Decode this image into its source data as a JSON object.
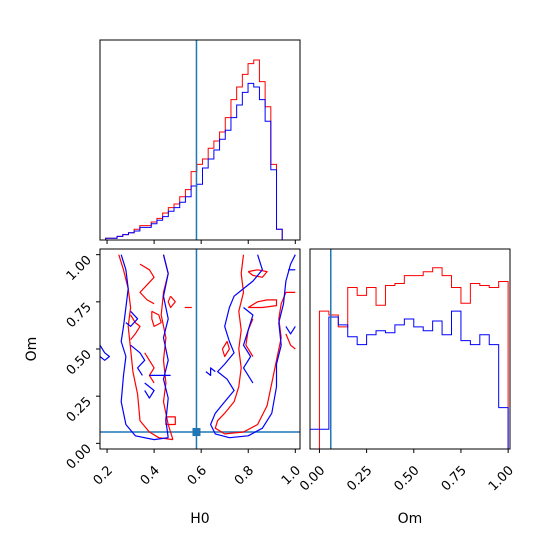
{
  "chart_data": {
    "type": "corner",
    "parameters": [
      "H0",
      "Om"
    ],
    "truth": {
      "H0": 0.58,
      "Om": 0.06
    },
    "colors": {
      "series_a": "#ff0000",
      "series_b": "#0000ff",
      "truth": "#1f77b4"
    },
    "xlabel_h0": "H0",
    "xlabel_om": "Om",
    "ylabel_om": "Om",
    "h0_ticks": [
      "0.2",
      "0.4",
      "0.6",
      "0.8",
      "1.0"
    ],
    "h0_tick_values": [
      0.2,
      0.4,
      0.6,
      0.8,
      1.0
    ],
    "om_ticks": [
      "0.00",
      "0.25",
      "0.50",
      "0.75",
      "1.00"
    ],
    "om_tick_values": [
      0.0,
      0.25,
      0.5,
      0.75,
      1.0
    ],
    "h0_range": [
      0.17,
      1.02
    ],
    "om_range": [
      -0.03,
      1.03
    ],
    "om_hist_range": [
      -0.05,
      1.01
    ],
    "hist_h0": {
      "bins": [
        0.17,
        0.1942,
        0.2184,
        0.2426,
        0.2668,
        0.291,
        0.3152,
        0.3394,
        0.3636,
        0.3878,
        0.412,
        0.4362,
        0.4604,
        0.4846,
        0.5088,
        0.533,
        0.5572,
        0.5814,
        0.6056,
        0.6298,
        0.654,
        0.6782,
        0.7024,
        0.7266,
        0.7508,
        0.775,
        0.7992,
        0.8234,
        0.8476,
        0.8718,
        0.896,
        0.9202,
        0.9444,
        0.9686,
        0.9928,
        1.017
      ],
      "series_a": [
        0.0,
        0.01,
        0.01,
        0.02,
        0.03,
        0.04,
        0.06,
        0.08,
        0.08,
        0.1,
        0.12,
        0.15,
        0.18,
        0.2,
        0.24,
        0.28,
        0.38,
        0.42,
        0.45,
        0.51,
        0.55,
        0.6,
        0.68,
        0.78,
        0.85,
        0.92,
        0.98,
        1.0,
        0.88,
        0.74,
        0.42,
        0.06,
        0.0,
        0.0,
        0.0
      ],
      "series_b": [
        0.0,
        0.01,
        0.01,
        0.02,
        0.03,
        0.04,
        0.05,
        0.07,
        0.07,
        0.09,
        0.11,
        0.13,
        0.16,
        0.18,
        0.21,
        0.24,
        0.3,
        0.31,
        0.4,
        0.45,
        0.5,
        0.56,
        0.61,
        0.68,
        0.75,
        0.82,
        0.87,
        0.85,
        0.78,
        0.66,
        0.39,
        0.06,
        0.0,
        0.0,
        0.0
      ]
    },
    "hist_om": {
      "bins": [
        -0.05,
        0.0,
        0.05,
        0.1,
        0.15,
        0.2,
        0.25,
        0.3,
        0.35,
        0.4,
        0.45,
        0.5,
        0.55,
        0.6,
        0.65,
        0.7,
        0.75,
        0.8,
        0.85,
        0.9,
        0.95,
        1.0
      ],
      "series_a": [
        0.0,
        0.7,
        0.68,
        0.62,
        0.82,
        0.78,
        0.82,
        0.73,
        0.83,
        0.84,
        0.88,
        0.88,
        0.9,
        0.92,
        0.88,
        0.82,
        0.74,
        0.84,
        0.83,
        0.82,
        0.85,
        0.0
      ],
      "series_b": [
        0.1,
        0.1,
        0.67,
        0.63,
        0.57,
        0.53,
        0.58,
        0.6,
        0.59,
        0.63,
        0.66,
        0.62,
        0.6,
        0.65,
        0.58,
        0.7,
        0.55,
        0.53,
        0.58,
        0.53,
        0.21,
        0.0
      ]
    },
    "contours": [
      {
        "series": "series_a",
        "points": [
          [
            0.25,
            1.0
          ],
          [
            0.27,
            0.92
          ],
          [
            0.29,
            0.82
          ],
          [
            0.3,
            0.72
          ],
          [
            0.29,
            0.62
          ],
          [
            0.3,
            0.5
          ],
          [
            0.31,
            0.38
          ],
          [
            0.33,
            0.26
          ],
          [
            0.34,
            0.12
          ],
          [
            0.38,
            0.06
          ],
          [
            0.42,
            0.03
          ],
          [
            0.48,
            0.02
          ]
        ]
      },
      {
        "series": "series_a",
        "points": [
          [
            0.48,
            0.02
          ],
          [
            0.46,
            0.1
          ],
          [
            0.44,
            0.22
          ],
          [
            0.45,
            0.32
          ],
          [
            0.44,
            0.44
          ],
          [
            0.45,
            0.56
          ],
          [
            0.43,
            0.68
          ],
          [
            0.44,
            0.8
          ],
          [
            0.46,
            0.9
          ],
          [
            0.44,
            1.0
          ]
        ]
      },
      {
        "series": "series_a",
        "points": [
          [
            0.34,
            0.95
          ],
          [
            0.38,
            0.92
          ],
          [
            0.4,
            0.88
          ],
          [
            0.37,
            0.84
          ],
          [
            0.34,
            0.8
          ],
          [
            0.37,
            0.76
          ],
          [
            0.4,
            0.74
          ]
        ]
      },
      {
        "series": "series_a",
        "points": [
          [
            0.3,
            0.68
          ],
          [
            0.32,
            0.64
          ],
          [
            0.34,
            0.62
          ],
          [
            0.32,
            0.58
          ],
          [
            0.3,
            0.55
          ]
        ]
      },
      {
        "series": "series_a",
        "points": [
          [
            0.39,
            0.7
          ],
          [
            0.42,
            0.68
          ],
          [
            0.43,
            0.64
          ],
          [
            0.4,
            0.62
          ],
          [
            0.39,
            0.66
          ],
          [
            0.39,
            0.7
          ]
        ]
      },
      {
        "series": "series_a",
        "points": [
          [
            0.36,
            0.48
          ],
          [
            0.38,
            0.44
          ],
          [
            0.4,
            0.4
          ],
          [
            0.38,
            0.36
          ],
          [
            0.4,
            0.32
          ]
        ]
      },
      {
        "series": "series_a",
        "points": [
          [
            0.45,
            0.14
          ],
          [
            0.49,
            0.14
          ],
          [
            0.49,
            0.1
          ],
          [
            0.45,
            0.1
          ],
          [
            0.45,
            0.14
          ]
        ]
      },
      {
        "series": "series_a",
        "points": [
          [
            0.47,
            0.78
          ],
          [
            0.49,
            0.75
          ],
          [
            0.47,
            0.72
          ],
          [
            0.46,
            0.75
          ],
          [
            0.47,
            0.78
          ]
        ]
      },
      {
        "series": "series_a",
        "points": [
          [
            0.53,
            0.72
          ],
          [
            0.56,
            0.72
          ]
        ]
      },
      {
        "series": "series_a",
        "points": [
          [
            0.69,
            0.5
          ],
          [
            0.71,
            0.54
          ],
          [
            0.72,
            0.5
          ],
          [
            0.7,
            0.46
          ],
          [
            0.69,
            0.5
          ]
        ]
      },
      {
        "series": "series_a",
        "points": [
          [
            0.78,
            1.0
          ],
          [
            0.77,
            0.9
          ],
          [
            0.78,
            0.8
          ],
          [
            0.76,
            0.7
          ],
          [
            0.77,
            0.6
          ],
          [
            0.76,
            0.5
          ],
          [
            0.77,
            0.4
          ],
          [
            0.76,
            0.3
          ],
          [
            0.74,
            0.22
          ],
          [
            0.7,
            0.16
          ],
          [
            0.67,
            0.12
          ],
          [
            0.66,
            0.08
          ],
          [
            0.7,
            0.05
          ],
          [
            0.78,
            0.06
          ],
          [
            0.84,
            0.1
          ],
          [
            0.88,
            0.2
          ],
          [
            0.9,
            0.32
          ],
          [
            0.92,
            0.44
          ],
          [
            0.94,
            0.56
          ],
          [
            0.93,
            0.66
          ],
          [
            0.94,
            0.74
          ],
          [
            0.96,
            0.8
          ],
          [
            1.0,
            0.8
          ]
        ]
      },
      {
        "series": "series_a",
        "points": [
          [
            0.8,
            0.72
          ],
          [
            0.84,
            0.75
          ],
          [
            0.88,
            0.76
          ],
          [
            0.92,
            0.76
          ],
          [
            0.92,
            0.73
          ],
          [
            0.86,
            0.72
          ],
          [
            0.8,
            0.72
          ]
        ]
      },
      {
        "series": "series_a",
        "points": [
          [
            0.82,
            0.66
          ],
          [
            0.8,
            0.6
          ],
          [
            0.79,
            0.52
          ],
          [
            0.82,
            0.46
          ]
        ]
      },
      {
        "series": "series_a",
        "points": [
          [
            0.8,
            0.91
          ],
          [
            0.84,
            0.92
          ],
          [
            0.88,
            0.91
          ],
          [
            0.86,
            0.88
          ],
          [
            0.82,
            0.89
          ],
          [
            0.8,
            0.91
          ]
        ]
      },
      {
        "series": "series_a",
        "points": [
          [
            0.96,
            0.58
          ],
          [
            0.98,
            0.52
          ],
          [
            1.0,
            0.5
          ]
        ]
      },
      {
        "series": "series_b",
        "points": [
          [
            0.26,
            1.0
          ],
          [
            0.28,
            0.92
          ],
          [
            0.29,
            0.82
          ],
          [
            0.28,
            0.72
          ],
          [
            0.27,
            0.62
          ],
          [
            0.26,
            0.54
          ],
          [
            0.28,
            0.46
          ],
          [
            0.27,
            0.36
          ],
          [
            0.26,
            0.22
          ],
          [
            0.28,
            0.1
          ],
          [
            0.32,
            0.04
          ],
          [
            0.4,
            0.02
          ],
          [
            0.46,
            0.03
          ]
        ]
      },
      {
        "series": "series_b",
        "points": [
          [
            0.46,
            0.03
          ],
          [
            0.45,
            0.12
          ],
          [
            0.46,
            0.24
          ],
          [
            0.44,
            0.34
          ],
          [
            0.46,
            0.44
          ],
          [
            0.44,
            0.56
          ],
          [
            0.46,
            0.66
          ],
          [
            0.44,
            0.78
          ],
          [
            0.46,
            0.9
          ],
          [
            0.44,
            1.0
          ]
        ]
      },
      {
        "series": "series_b",
        "points": [
          [
            0.17,
            0.52
          ],
          [
            0.19,
            0.48
          ],
          [
            0.21,
            0.46
          ],
          [
            0.19,
            0.44
          ],
          [
            0.17,
            0.46
          ]
        ]
      },
      {
        "series": "series_b",
        "points": [
          [
            0.3,
            0.7
          ],
          [
            0.33,
            0.66
          ],
          [
            0.3,
            0.62
          ],
          [
            0.28,
            0.64
          ]
        ]
      },
      {
        "series": "series_b",
        "points": [
          [
            0.3,
            0.52
          ],
          [
            0.34,
            0.48
          ],
          [
            0.36,
            0.44
          ],
          [
            0.33,
            0.4
          ],
          [
            0.35,
            0.36
          ]
        ]
      },
      {
        "series": "series_b",
        "points": [
          [
            0.36,
            0.32
          ],
          [
            0.4,
            0.28
          ],
          [
            0.38,
            0.24
          ],
          [
            0.36,
            0.28
          ]
        ]
      },
      {
        "series": "series_b",
        "points": [
          [
            0.38,
            0.36
          ],
          [
            0.47,
            0.36
          ]
        ]
      },
      {
        "series": "series_b",
        "points": [
          [
            0.7,
            0.22
          ],
          [
            0.66,
            0.16
          ],
          [
            0.64,
            0.1
          ],
          [
            0.66,
            0.05
          ],
          [
            0.72,
            0.03
          ],
          [
            0.8,
            0.04
          ],
          [
            0.86,
            0.08
          ],
          [
            0.9,
            0.16
          ],
          [
            0.92,
            0.3
          ],
          [
            0.92,
            0.42
          ],
          [
            0.94,
            0.52
          ],
          [
            0.93,
            0.64
          ],
          [
            0.95,
            0.74
          ],
          [
            0.96,
            0.86
          ],
          [
            0.98,
            0.95
          ],
          [
            1.0,
            1.0
          ]
        ]
      },
      {
        "series": "series_b",
        "points": [
          [
            0.84,
            1.0
          ],
          [
            0.86,
            0.92
          ],
          [
            0.82,
            0.86
          ],
          [
            0.78,
            0.82
          ],
          [
            0.74,
            0.78
          ],
          [
            0.72,
            0.72
          ],
          [
            0.7,
            0.62
          ],
          [
            0.72,
            0.54
          ],
          [
            0.74,
            0.48
          ],
          [
            0.7,
            0.42
          ],
          [
            0.67,
            0.38
          ],
          [
            0.71,
            0.34
          ],
          [
            0.74,
            0.28
          ],
          [
            0.7,
            0.22
          ]
        ]
      },
      {
        "series": "series_b",
        "points": [
          [
            0.78,
            0.72
          ],
          [
            0.82,
            0.68
          ],
          [
            0.8,
            0.6
          ],
          [
            0.78,
            0.52
          ],
          [
            0.81,
            0.46
          ],
          [
            0.78,
            0.4
          ],
          [
            0.8,
            0.36
          ],
          [
            0.82,
            0.32
          ]
        ]
      },
      {
        "series": "series_b",
        "points": [
          [
            0.62,
            0.38
          ],
          [
            0.64,
            0.36
          ],
          [
            0.64,
            0.4
          ],
          [
            0.66,
            0.38
          ]
        ]
      },
      {
        "series": "series_b",
        "points": [
          [
            0.96,
            0.62
          ],
          [
            0.98,
            0.58
          ],
          [
            1.0,
            0.62
          ]
        ]
      },
      {
        "series": "series_b",
        "points": [
          [
            0.97,
            0.92
          ],
          [
            1.0,
            0.92
          ]
        ]
      }
    ]
  }
}
